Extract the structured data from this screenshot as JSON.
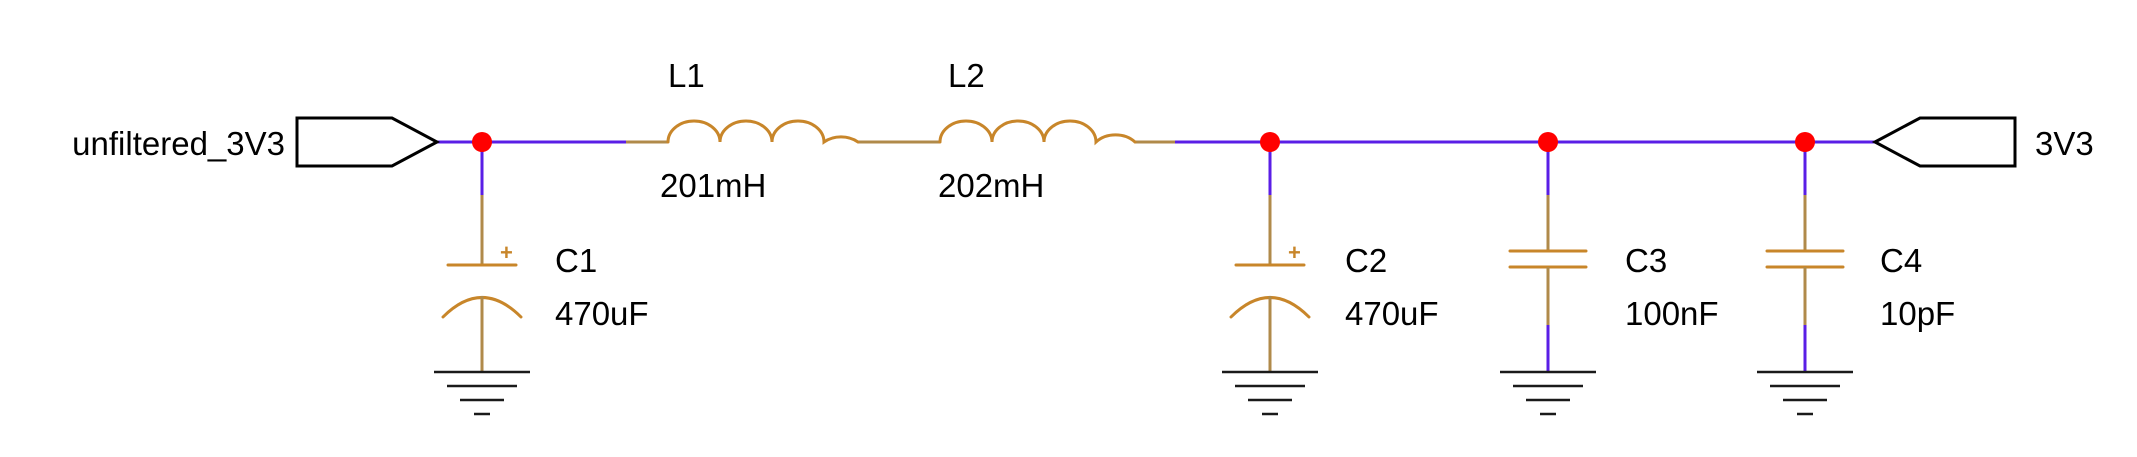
{
  "ports": {
    "input": "unfiltered_3V3",
    "output": "3V3"
  },
  "components": {
    "L1": {
      "ref": "L1",
      "value": "201mH"
    },
    "L2": {
      "ref": "L2",
      "value": "202mH"
    },
    "C1": {
      "ref": "C1",
      "value": "470uF",
      "polarized": true
    },
    "C2": {
      "ref": "C2",
      "value": "470uF",
      "polarized": true
    },
    "C3": {
      "ref": "C3",
      "value": "100nF",
      "polarized": false
    },
    "C4": {
      "ref": "C4",
      "value": "10pF",
      "polarized": false
    }
  },
  "symbols": {
    "polarity_mark": "+"
  },
  "colors": {
    "wire": "#5a1ee6",
    "component": "#c8862a",
    "junction": "#ff0000",
    "ground": "#1a1a1a"
  }
}
